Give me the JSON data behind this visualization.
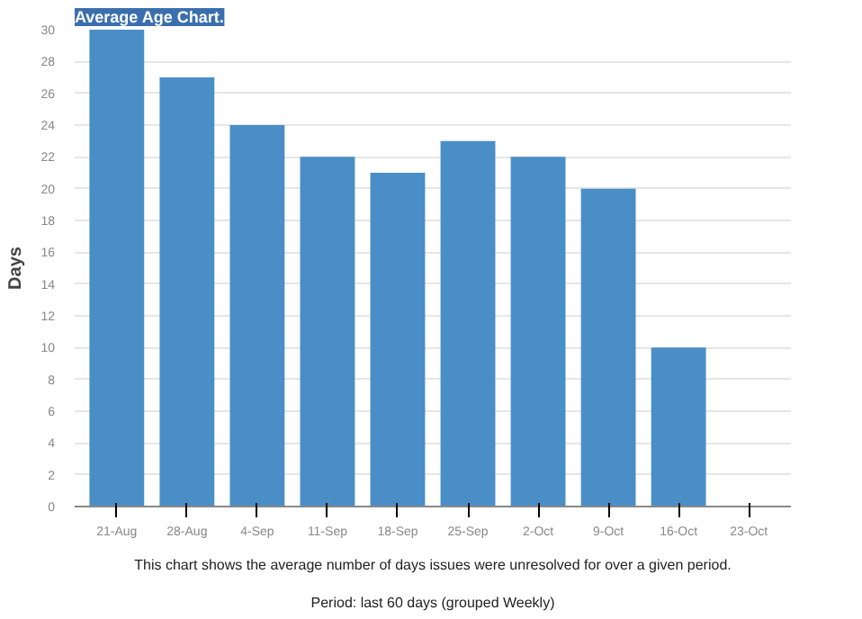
{
  "chart_data": {
    "type": "bar",
    "title": "Average Age Chart.",
    "ylabel": "Days",
    "categories": [
      "21-Aug",
      "28-Aug",
      "4-Sep",
      "11-Sep",
      "18-Sep",
      "25-Sep",
      "2-Oct",
      "9-Oct",
      "16-Oct",
      "23-Oct"
    ],
    "values": [
      30,
      27,
      24,
      22,
      21,
      23,
      22,
      20,
      10,
      null
    ],
    "color": "#4a8ec7",
    "ylim": [
      0,
      30
    ],
    "yticks": [
      0,
      2,
      4,
      6,
      8,
      10,
      12,
      14,
      16,
      18,
      20,
      22,
      24,
      26,
      28,
      30
    ],
    "grid": "y",
    "annotations": [
      "This chart shows the average number of days issues were unresolved for over a given period.",
      "Period: last 60 days (grouped Weekly)"
    ]
  }
}
